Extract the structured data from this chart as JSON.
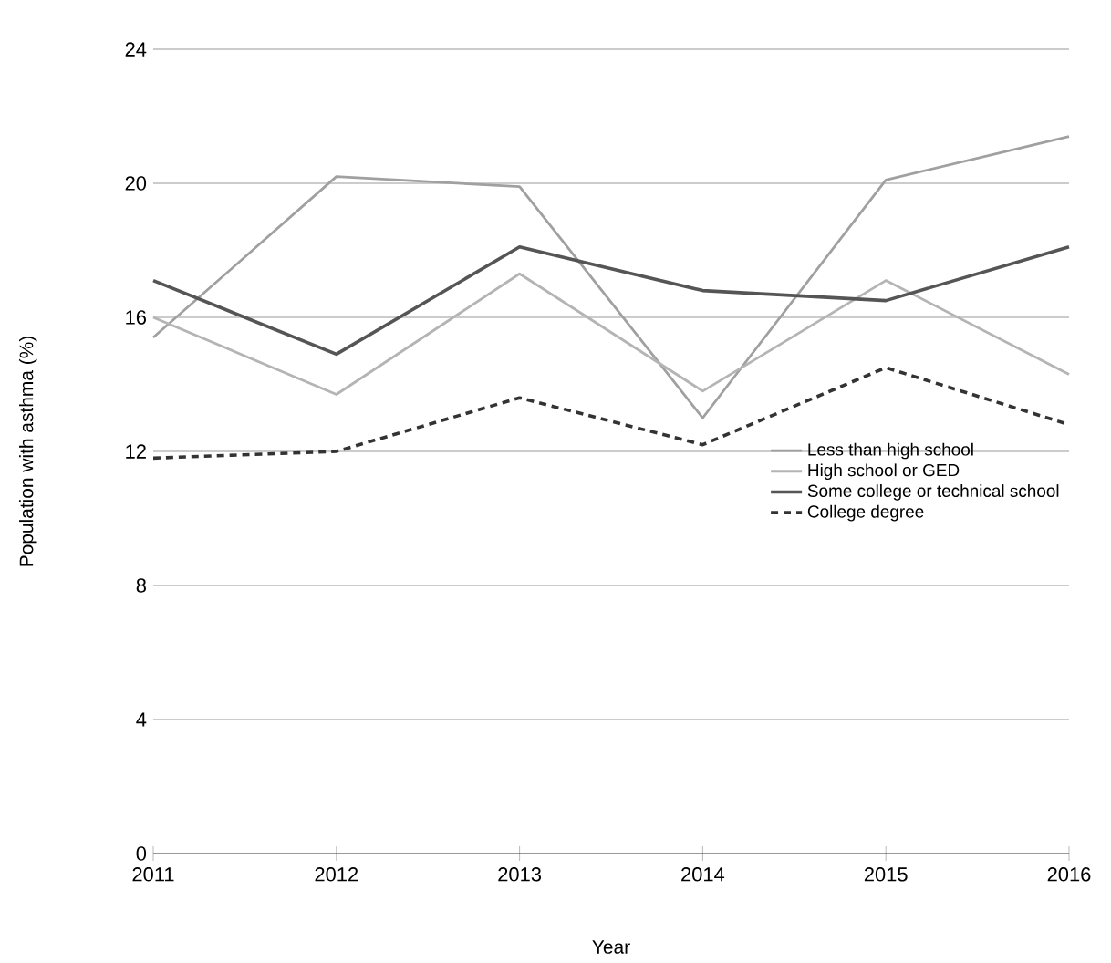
{
  "chart_data": {
    "type": "line",
    "xlabel": "Year",
    "ylabel": "Population with asthma (%)",
    "x": [
      2011,
      2012,
      2013,
      2014,
      2015,
      2016
    ],
    "xlim": [
      2011,
      2016
    ],
    "xticks": [
      2011,
      2012,
      2013,
      2014,
      2015,
      2016
    ],
    "ylim": [
      0,
      24
    ],
    "yticks": [
      0,
      4,
      8,
      12,
      16,
      20,
      24
    ],
    "grid": "y",
    "legend": "right",
    "series": [
      {
        "name": "Less than high school",
        "color": "#a0a0a0",
        "line_style": "solid",
        "values": [
          15.4,
          20.2,
          19.9,
          13.0,
          20.1,
          21.4
        ]
      },
      {
        "name": "High school or GED",
        "color": "#b4b4b4",
        "line_style": "solid",
        "values": [
          16.0,
          13.7,
          17.3,
          13.8,
          17.1,
          14.3
        ]
      },
      {
        "name": "Some college or technical school",
        "color": "#555555",
        "line_style": "solid",
        "values": [
          17.1,
          14.9,
          18.1,
          16.8,
          16.5,
          18.1
        ]
      },
      {
        "name": "College degree",
        "color": "#333333",
        "line_style": "dashed",
        "values": [
          11.8,
          12.0,
          13.6,
          12.2,
          14.5,
          12.8
        ]
      }
    ]
  }
}
